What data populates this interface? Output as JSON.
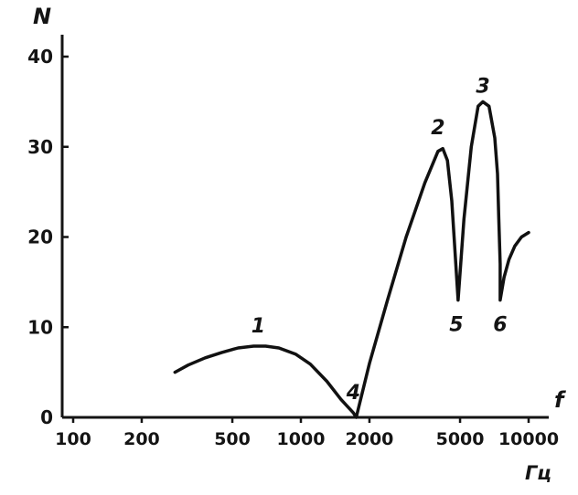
{
  "chart_data": {
    "type": "line",
    "ylabel": "N",
    "xlabel": "f",
    "x_unit": "Гц",
    "x_scale": "log",
    "xlim": [
      100,
      13000
    ],
    "ylim": [
      0,
      44
    ],
    "grid": false,
    "x_ticks": [
      100,
      200,
      500,
      1000,
      2000,
      5000,
      10000
    ],
    "x_tick_labels": [
      "100",
      "200",
      "500",
      "1000",
      "2000",
      "5000",
      "10000"
    ],
    "y_ticks": [
      0,
      10,
      20,
      30,
      40
    ],
    "y_tick_labels": [
      "0",
      "10",
      "20",
      "30",
      "40"
    ],
    "series": [
      {
        "x": [
          280,
          320,
          380,
          450,
          530,
          620,
          700,
          800,
          950,
          1100,
          1300,
          1500,
          1700,
          1750,
          2000,
          2400,
          2900,
          3500,
          4000,
          4200,
          4400,
          4600,
          4900,
          5200,
          5600,
          6000,
          6300,
          6700,
          7100,
          7300,
          7400,
          7500,
          7500,
          7800,
          8200,
          8700,
          9300,
          10000
        ],
        "y": [
          5,
          5.8,
          6.6,
          7.2,
          7.7,
          7.9,
          7.9,
          7.7,
          7.0,
          5.9,
          4.0,
          2.0,
          0.5,
          0,
          6,
          13,
          20,
          26,
          29.5,
          29.8,
          28.5,
          24,
          13,
          22,
          30,
          34.5,
          35,
          34.5,
          31,
          27,
          22,
          17,
          13,
          15.5,
          17.5,
          19,
          20,
          20.5
        ]
      }
    ],
    "annotations": [
      {
        "text": "1",
        "x": 650,
        "y": 8
      },
      {
        "text": "2",
        "x": 4000,
        "y": 30
      },
      {
        "text": "3",
        "x": 6300,
        "y": 35
      },
      {
        "text": "4",
        "x": 1700,
        "y": 0
      },
      {
        "text": "5",
        "x": 4900,
        "y": 13
      },
      {
        "text": "6",
        "x": 7500,
        "y": 13
      }
    ]
  }
}
